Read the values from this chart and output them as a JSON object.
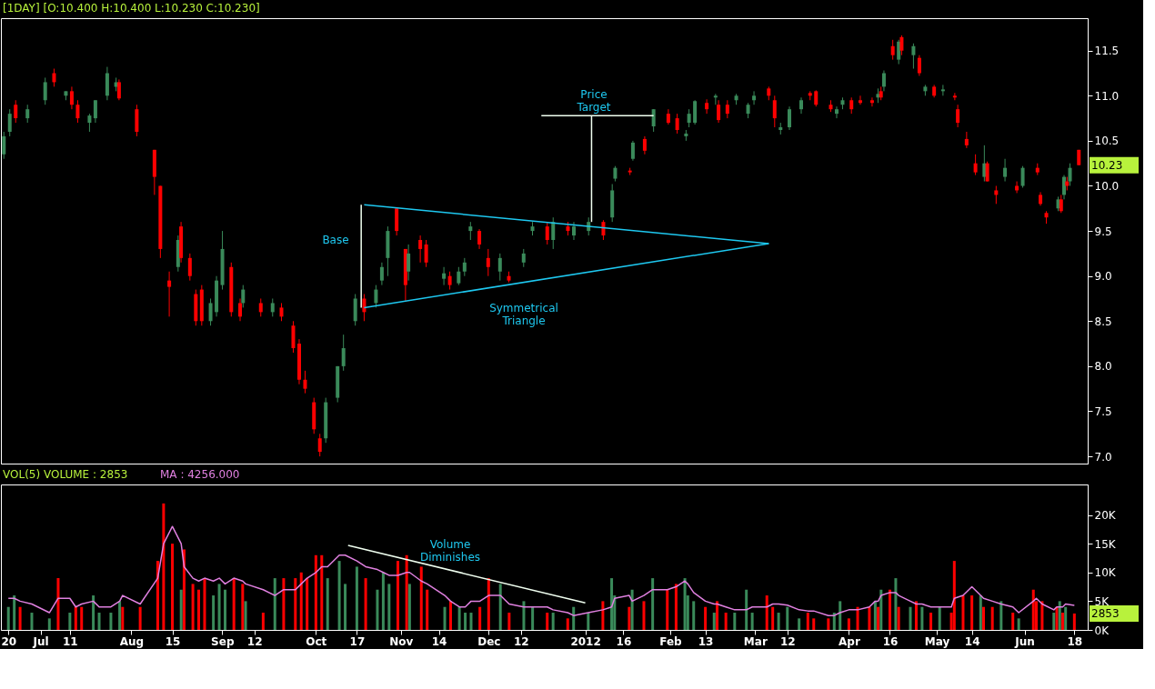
{
  "chart_data": [
    {
      "type": "candlestick",
      "title": "[1DAY] [O:10.400 H:10.400 L:10.230 C:10.230]",
      "x": [
        "2011-06-20",
        "2011-06-22",
        "2011-06-24",
        "2011-06-28",
        "2011-07-04",
        "2011-07-07",
        "2011-07-11",
        "2011-07-13",
        "2011-07-15",
        "2011-07-19",
        "2011-07-21",
        "2011-07-25",
        "2011-07-28",
        "2011-07-29",
        "2011-08-04",
        "2011-08-10",
        "2011-08-12",
        "2011-08-15",
        "2011-08-18",
        "2011-08-19",
        "2011-08-22",
        "2011-08-24",
        "2011-08-26",
        "2011-08-29",
        "2011-08-31",
        "2011-09-02",
        "2011-09-05",
        "2011-09-08",
        "2011-09-09",
        "2011-09-15",
        "2011-09-19",
        "2011-09-22",
        "2011-09-26",
        "2011-09-28",
        "2011-09-30",
        "2011-10-03",
        "2011-10-05",
        "2011-10-07",
        "2011-10-11",
        "2011-10-13",
        "2011-10-17",
        "2011-10-20",
        "2011-10-24",
        "2011-10-26",
        "2011-10-28",
        "2011-10-31",
        "2011-11-03",
        "2011-11-04",
        "2011-11-08",
        "2011-11-10",
        "2011-11-16",
        "2011-11-18",
        "2011-11-21",
        "2011-11-23",
        "2011-11-25",
        "2011-11-28",
        "2011-12-01",
        "2011-12-05",
        "2011-12-08",
        "2011-12-13",
        "2011-12-16",
        "2011-12-21",
        "2011-12-23",
        "2011-12-28",
        "2011-12-30",
        "2012-01-04",
        "2012-01-09",
        "2012-01-12",
        "2012-01-13",
        "2012-01-18",
        "2012-01-19",
        "2012-01-23",
        "2012-01-26",
        "2012-01-31",
        "2012-02-03",
        "2012-02-06",
        "2012-02-07",
        "2012-02-09",
        "2012-02-13",
        "2012-02-16",
        "2012-02-17",
        "2012-02-20",
        "2012-02-23",
        "2012-02-27",
        "2012-02-29",
        "2012-03-05",
        "2012-03-07",
        "2012-03-09",
        "2012-03-12",
        "2012-03-16",
        "2012-03-19",
        "2012-03-21",
        "2012-03-26",
        "2012-03-28",
        "2012-03-30",
        "2012-04-02",
        "2012-04-05",
        "2012-04-09",
        "2012-04-11",
        "2012-04-12",
        "2012-04-13",
        "2012-04-16",
        "2012-04-18",
        "2012-04-19",
        "2012-04-23",
        "2012-04-25",
        "2012-04-27",
        "2012-04-30",
        "2012-05-03",
        "2012-05-07",
        "2012-05-08",
        "2012-05-11",
        "2012-05-14",
        "2012-05-17",
        "2012-05-18",
        "2012-05-21",
        "2012-05-24",
        "2012-05-28",
        "2012-05-30",
        "2012-06-04",
        "2012-06-05",
        "2012-06-07",
        "2012-06-11",
        "2012-06-12",
        "2012-06-13",
        "2012-06-14",
        "2012-06-15",
        "2012-06-18"
      ],
      "ohlc": [
        [
          10.35,
          10.6,
          10.3,
          10.55
        ],
        [
          10.6,
          10.85,
          10.55,
          10.8
        ],
        [
          10.9,
          10.95,
          10.7,
          10.75
        ],
        [
          10.75,
          10.9,
          10.7,
          10.85
        ],
        [
          10.95,
          11.2,
          10.9,
          11.15
        ],
        [
          11.25,
          11.3,
          11.1,
          11.15
        ],
        [
          11.0,
          11.05,
          10.95,
          11.05
        ],
        [
          11.05,
          11.1,
          10.85,
          10.9
        ],
        [
          10.9,
          10.95,
          10.7,
          10.75
        ],
        [
          10.7,
          10.8,
          10.6,
          10.78
        ],
        [
          10.75,
          10.95,
          10.7,
          10.95
        ],
        [
          11.0,
          11.32,
          10.95,
          11.25
        ],
        [
          11.1,
          11.2,
          11.05,
          11.15
        ],
        [
          11.15,
          11.18,
          10.95,
          10.97
        ],
        [
          10.85,
          10.9,
          10.55,
          10.6
        ],
        [
          10.4,
          10.4,
          9.9,
          10.1
        ],
        [
          10.0,
          10.0,
          9.2,
          9.3
        ],
        [
          8.95,
          9.05,
          8.55,
          8.88
        ],
        [
          9.1,
          9.45,
          9.05,
          9.4
        ],
        [
          9.55,
          9.6,
          9.15,
          9.2
        ],
        [
          9.2,
          9.25,
          8.95,
          9.0
        ],
        [
          8.8,
          8.85,
          8.45,
          8.5
        ],
        [
          8.85,
          8.9,
          8.45,
          8.5
        ],
        [
          8.5,
          8.75,
          8.45,
          8.7
        ],
        [
          8.6,
          9.0,
          8.55,
          8.95
        ],
        [
          8.9,
          9.5,
          8.85,
          9.3
        ],
        [
          9.1,
          9.15,
          8.55,
          8.6
        ],
        [
          8.7,
          8.75,
          8.5,
          8.55
        ],
        [
          8.7,
          8.9,
          8.65,
          8.85
        ],
        [
          8.7,
          8.75,
          8.55,
          8.6
        ],
        [
          8.6,
          8.75,
          8.55,
          8.7
        ],
        [
          8.65,
          8.7,
          8.5,
          8.55
        ],
        [
          8.45,
          8.5,
          8.15,
          8.2
        ],
        [
          8.25,
          8.3,
          7.8,
          7.85
        ],
        [
          7.85,
          7.95,
          7.7,
          7.75
        ],
        [
          7.6,
          7.65,
          7.25,
          7.3
        ],
        [
          7.2,
          7.25,
          7.0,
          7.05
        ],
        [
          7.2,
          7.65,
          7.15,
          7.6
        ],
        [
          7.65,
          8.0,
          7.6,
          8.0
        ],
        [
          8.0,
          8.35,
          7.95,
          8.2
        ],
        [
          8.5,
          8.8,
          8.45,
          8.75
        ],
        [
          8.75,
          8.8,
          8.5,
          8.6
        ],
        [
          8.7,
          8.9,
          8.65,
          8.85
        ],
        [
          8.95,
          9.15,
          8.9,
          9.1
        ],
        [
          9.2,
          9.55,
          9.0,
          9.5
        ],
        [
          9.75,
          9.75,
          9.45,
          9.5
        ],
        [
          9.3,
          9.3,
          8.72,
          8.9
        ],
        [
          9.05,
          9.35,
          8.95,
          9.25
        ],
        [
          9.4,
          9.45,
          9.15,
          9.3
        ],
        [
          9.35,
          9.4,
          9.1,
          9.15
        ],
        [
          8.97,
          9.1,
          8.9,
          9.03
        ],
        [
          9.0,
          9.05,
          8.85,
          8.9
        ],
        [
          8.92,
          9.1,
          8.9,
          9.05
        ],
        [
          9.05,
          9.2,
          9.0,
          9.15
        ],
        [
          9.5,
          9.6,
          9.4,
          9.55
        ],
        [
          9.5,
          9.52,
          9.3,
          9.35
        ],
        [
          9.2,
          9.3,
          9.0,
          9.1
        ],
        [
          9.05,
          9.25,
          8.95,
          9.2
        ],
        [
          9.0,
          9.05,
          8.93,
          8.95
        ],
        [
          9.15,
          9.3,
          9.1,
          9.25
        ],
        [
          9.5,
          9.6,
          9.45,
          9.55
        ],
        [
          9.55,
          9.6,
          9.35,
          9.4
        ],
        [
          9.4,
          9.65,
          9.3,
          9.6
        ],
        [
          9.55,
          9.6,
          9.45,
          9.5
        ],
        [
          9.45,
          9.6,
          9.4,
          9.55
        ],
        [
          9.5,
          9.65,
          9.45,
          9.6
        ],
        [
          9.6,
          9.62,
          9.4,
          9.45
        ],
        [
          9.65,
          10.02,
          9.6,
          9.95
        ],
        [
          10.08,
          10.22,
          10.05,
          10.2
        ],
        [
          10.17,
          10.2,
          10.12,
          10.15
        ],
        [
          10.3,
          10.5,
          10.28,
          10.48
        ],
        [
          10.52,
          10.55,
          10.35,
          10.39
        ],
        [
          10.66,
          10.85,
          10.6,
          10.85
        ],
        [
          10.8,
          10.85,
          10.68,
          10.7
        ],
        [
          10.75,
          10.8,
          10.58,
          10.62
        ],
        [
          10.55,
          10.62,
          10.5,
          10.58
        ],
        [
          10.7,
          10.85,
          10.65,
          10.8
        ],
        [
          10.7,
          10.95,
          10.68,
          10.94
        ],
        [
          10.92,
          10.96,
          10.8,
          10.85
        ],
        [
          10.98,
          11.02,
          10.9,
          11.0
        ],
        [
          10.9,
          10.95,
          10.7,
          10.73
        ],
        [
          10.9,
          10.95,
          10.75,
          10.8
        ],
        [
          10.95,
          11.02,
          10.9,
          11.0
        ],
        [
          10.8,
          10.92,
          10.75,
          10.9
        ],
        [
          10.95,
          11.05,
          10.9,
          11.0
        ],
        [
          11.08,
          11.1,
          10.95,
          11.0
        ],
        [
          10.95,
          11.0,
          10.65,
          10.75
        ],
        [
          10.62,
          10.7,
          10.57,
          10.65
        ],
        [
          10.65,
          10.88,
          10.62,
          10.85
        ],
        [
          10.85,
          10.98,
          10.8,
          10.95
        ],
        [
          11.03,
          11.05,
          10.95,
          11.0
        ],
        [
          11.05,
          11.06,
          10.88,
          10.9
        ],
        [
          10.9,
          10.95,
          10.82,
          10.85
        ],
        [
          10.8,
          10.88,
          10.75,
          10.85
        ],
        [
          10.9,
          10.98,
          10.85,
          10.95
        ],
        [
          10.95,
          10.98,
          10.8,
          10.85
        ],
        [
          10.95,
          11.0,
          10.9,
          10.92
        ],
        [
          10.95,
          10.98,
          10.88,
          10.92
        ],
        [
          10.98,
          11.08,
          10.92,
          11.02
        ],
        [
          11.05,
          11.1,
          10.95,
          10.98
        ],
        [
          11.1,
          11.28,
          11.05,
          11.25
        ],
        [
          11.55,
          11.62,
          11.4,
          11.45
        ],
        [
          11.4,
          11.62,
          11.35,
          11.6
        ],
        [
          11.65,
          11.67,
          11.45,
          11.5
        ],
        [
          11.45,
          11.58,
          11.3,
          11.55
        ],
        [
          11.42,
          11.45,
          11.22,
          11.25
        ],
        [
          11.05,
          11.12,
          11.0,
          11.1
        ],
        [
          11.1,
          11.12,
          10.98,
          11.0
        ],
        [
          11.05,
          11.12,
          11.0,
          11.07
        ],
        [
          11.0,
          11.03,
          10.95,
          10.98
        ],
        [
          10.85,
          10.9,
          10.65,
          10.7
        ],
        [
          10.52,
          10.6,
          10.42,
          10.45
        ],
        [
          10.25,
          10.35,
          10.12,
          10.15
        ],
        [
          10.1,
          10.45,
          10.05,
          10.25
        ],
        [
          10.25,
          10.27,
          10.05,
          10.05
        ],
        [
          9.95,
          10.0,
          9.8,
          9.9
        ],
        [
          10.1,
          10.3,
          10.05,
          10.2
        ],
        [
          10.0,
          10.05,
          9.92,
          9.95
        ],
        [
          10.0,
          10.22,
          9.98,
          10.2
        ],
        [
          10.2,
          10.25,
          10.12,
          10.15
        ],
        [
          9.9,
          9.93,
          9.78,
          9.8
        ],
        [
          9.7,
          9.72,
          9.58,
          9.65
        ],
        [
          9.75,
          9.88,
          9.72,
          9.85
        ],
        [
          9.85,
          9.9,
          9.7,
          9.72
        ],
        [
          9.9,
          10.12,
          9.85,
          10.1
        ],
        [
          10.05,
          10.1,
          9.95,
          10.0
        ],
        [
          10.05,
          10.25,
          10.0,
          10.2
        ],
        [
          10.4,
          10.4,
          10.23,
          10.23
        ]
      ],
      "colors": [
        "#3a8a5a",
        "#3a8a5a",
        "#ff0000",
        "#3a8a5a",
        "#3a8a5a",
        "#ff0000",
        "#3a8a5a",
        "#ff0000",
        "#ff0000",
        "#3a8a5a",
        "#3a8a5a",
        "#3a8a5a",
        "#3a8a5a",
        "#ff0000",
        "#ff0000",
        "#ff0000",
        "#ff0000",
        "#ff0000",
        "#3a8a5a",
        "#ff0000",
        "#ff0000",
        "#ff0000",
        "#ff0000",
        "#3a8a5a",
        "#3a8a5a",
        "#3a8a5a",
        "#ff0000",
        "#ff0000",
        "#3a8a5a",
        "#ff0000",
        "#3a8a5a",
        "#ff0000",
        "#ff0000",
        "#ff0000",
        "#ff0000",
        "#ff0000",
        "#ff0000",
        "#3a8a5a",
        "#3a8a5a",
        "#3a8a5a",
        "#3a8a5a",
        "#ff0000",
        "#3a8a5a",
        "#3a8a5a",
        "#3a8a5a",
        "#ff0000",
        "#ff0000",
        "#3a8a5a",
        "#ff0000",
        "#ff0000",
        "#3a8a5a",
        "#ff0000",
        "#3a8a5a",
        "#3a8a5a",
        "#3a8a5a",
        "#ff0000",
        "#ff0000",
        "#3a8a5a",
        "#ff0000",
        "#3a8a5a",
        "#3a8a5a",
        "#ff0000",
        "#3a8a5a",
        "#ff0000",
        "#3a8a5a",
        "#3a8a5a",
        "#ff0000",
        "#3a8a5a",
        "#3a8a5a",
        "#ff0000",
        "#3a8a5a",
        "#ff0000",
        "#3a8a5a",
        "#ff0000",
        "#ff0000",
        "#3a8a5a",
        "#3a8a5a",
        "#3a8a5a",
        "#ff0000",
        "#3a8a5a",
        "#ff0000",
        "#ff0000",
        "#3a8a5a",
        "#3a8a5a",
        "#3a8a5a",
        "#ff0000",
        "#ff0000",
        "#3a8a5a",
        "#3a8a5a",
        "#3a8a5a",
        "#ff0000",
        "#ff0000",
        "#ff0000",
        "#3a8a5a",
        "#3a8a5a",
        "#ff0000",
        "#ff0000",
        "#ff0000",
        "#3a8a5a",
        "#ff0000",
        "#3a8a5a",
        "#ff0000",
        "#3a8a5a",
        "#ff0000",
        "#3a8a5a",
        "#ff0000",
        "#3a8a5a",
        "#ff0000",
        "#3a8a5a",
        "#ff0000",
        "#ff0000",
        "#ff0000",
        "#ff0000",
        "#3a8a5a",
        "#ff0000",
        "#ff0000",
        "#3a8a5a",
        "#ff0000",
        "#3a8a5a",
        "#ff0000",
        "#ff0000",
        "#ff0000",
        "#3a8a5a",
        "#ff0000",
        "#3a8a5a",
        "#ff0000",
        "#3a8a5a",
        "#ff0000"
      ],
      "series": [
        {
          "type": "line",
          "color": "#1ec8f0",
          "x": [
            "2011-10-20",
            "2012-03-05"
          ],
          "values": [
            9.79,
            9.36
          ]
        },
        {
          "type": "line",
          "color": "#1ec8f0",
          "x": [
            "2011-10-20",
            "2012-03-05"
          ],
          "values": [
            8.65,
            9.36
          ]
        },
        {
          "type": "line",
          "color": "#f0fff0",
          "x": [
            "2011-10-19",
            "2011-10-19"
          ],
          "values": [
            8.65,
            9.79
          ]
        },
        {
          "type": "line",
          "color": "#f0fff0",
          "x": [
            "2012-01-05",
            "2012-01-05"
          ],
          "values": [
            9.6,
            10.78
          ]
        },
        {
          "type": "line",
          "color": "#f0fff0",
          "x": [
            "2011-12-19",
            "2012-01-26"
          ],
          "values": [
            10.78,
            10.78
          ]
        }
      ],
      "annotations": [
        "Base",
        "Price\nTarget",
        "Symmetrical\nTriangle",
        "10.23"
      ],
      "xlim": [
        "2011-06-19",
        "2012-06-21"
      ],
      "ylim": [
        6.92,
        11.86
      ],
      "yticks": [
        {
          "value": 7,
          "label": "7.0"
        },
        7.5,
        {
          "value": 8,
          "label": "8.0"
        },
        8.5,
        {
          "value": 9,
          "label": "9.0"
        },
        9.5,
        {
          "value": 10,
          "label": "10.0"
        },
        10.5,
        {
          "value": 11,
          "label": "11.0"
        },
        11.5
      ],
      "tick_labels": "y",
      "grid": false
    },
    {
      "type": "bar",
      "title": "VOL(5)  VOLUME : 2853",
      "x": [
        "2011-06-20",
        "2011-06-22",
        "2011-06-24",
        "2011-06-28",
        "2011-07-04",
        "2011-07-07",
        "2011-07-11",
        "2011-07-13",
        "2011-07-15",
        "2011-07-19",
        "2011-07-21",
        "2011-07-25",
        "2011-07-28",
        "2011-07-29",
        "2011-08-04",
        "2011-08-10",
        "2011-08-12",
        "2011-08-15",
        "2011-08-18",
        "2011-08-19",
        "2011-08-22",
        "2011-08-24",
        "2011-08-26",
        "2011-08-29",
        "2011-08-31",
        "2011-09-02",
        "2011-09-05",
        "2011-09-08",
        "2011-09-09",
        "2011-09-15",
        "2011-09-19",
        "2011-09-22",
        "2011-09-26",
        "2011-09-28",
        "2011-09-30",
        "2011-10-03",
        "2011-10-05",
        "2011-10-07",
        "2011-10-11",
        "2011-10-13",
        "2011-10-17",
        "2011-10-20",
        "2011-10-24",
        "2011-10-26",
        "2011-10-28",
        "2011-10-31",
        "2011-11-03",
        "2011-11-04",
        "2011-11-08",
        "2011-11-10",
        "2011-11-16",
        "2011-11-18",
        "2011-11-21",
        "2011-11-23",
        "2011-11-25",
        "2011-11-28",
        "2011-12-01",
        "2011-12-05",
        "2011-12-08",
        "2011-12-13",
        "2011-12-16",
        "2011-12-21",
        "2011-12-23",
        "2011-12-28",
        "2011-12-30",
        "2012-01-04",
        "2012-01-09",
        "2012-01-12",
        "2012-01-13",
        "2012-01-18",
        "2012-01-19",
        "2012-01-23",
        "2012-01-26",
        "2012-01-31",
        "2012-02-03",
        "2012-02-06",
        "2012-02-07",
        "2012-02-09",
        "2012-02-13",
        "2012-02-16",
        "2012-02-17",
        "2012-02-20",
        "2012-02-23",
        "2012-02-27",
        "2012-02-29",
        "2012-03-05",
        "2012-03-07",
        "2012-03-09",
        "2012-03-12",
        "2012-03-16",
        "2012-03-19",
        "2012-03-21",
        "2012-03-26",
        "2012-03-28",
        "2012-03-30",
        "2012-04-02",
        "2012-04-05",
        "2012-04-09",
        "2012-04-11",
        "2012-04-12",
        "2012-04-13",
        "2012-04-16",
        "2012-04-18",
        "2012-04-19",
        "2012-04-23",
        "2012-04-25",
        "2012-04-27",
        "2012-04-30",
        "2012-05-03",
        "2012-05-07",
        "2012-05-08",
        "2012-05-11",
        "2012-05-14",
        "2012-05-17",
        "2012-05-18",
        "2012-05-21",
        "2012-05-24",
        "2012-05-28",
        "2012-05-30",
        "2012-06-04",
        "2012-06-05",
        "2012-06-07",
        "2012-06-11",
        "2012-06-12",
        "2012-06-13",
        "2012-06-14",
        "2012-06-15",
        "2012-06-18"
      ],
      "values": [
        4,
        6,
        4,
        3,
        2,
        9,
        3,
        4,
        4,
        6,
        3,
        3,
        5,
        4,
        4,
        12,
        22,
        15,
        7,
        14,
        8,
        7,
        9,
        6,
        8,
        7,
        9,
        8,
        5,
        3,
        9,
        9,
        9,
        10,
        9,
        13,
        13,
        9,
        12,
        8,
        11,
        9,
        7,
        10,
        8,
        12,
        13,
        8,
        11,
        7,
        4,
        5,
        4,
        3,
        3,
        4,
        9,
        8,
        3,
        5,
        4,
        3,
        3,
        2,
        4,
        3,
        5,
        9,
        6,
        4,
        7,
        5,
        9,
        7,
        8,
        9,
        6,
        5,
        4,
        3,
        5,
        3,
        3,
        7,
        3,
        6,
        4,
        3,
        4,
        2,
        3,
        2,
        2,
        3,
        5,
        2,
        4,
        4,
        5,
        4,
        7,
        7,
        9,
        4,
        4,
        5,
        4,
        3,
        4,
        3,
        12,
        6,
        6,
        6,
        4,
        4,
        5,
        3,
        2,
        7,
        5,
        5,
        3,
        4,
        5,
        3,
        4,
        2.853
      ],
      "colors": [
        "#3a8a5a",
        "#3a8a5a",
        "#ff0000",
        "#3a8a5a",
        "#3a8a5a",
        "#ff0000",
        "#3a8a5a",
        "#ff0000",
        "#ff0000",
        "#3a8a5a",
        "#3a8a5a",
        "#3a8a5a",
        "#3a8a5a",
        "#ff0000",
        "#ff0000",
        "#ff0000",
        "#ff0000",
        "#ff0000",
        "#3a8a5a",
        "#ff0000",
        "#ff0000",
        "#ff0000",
        "#ff0000",
        "#3a8a5a",
        "#3a8a5a",
        "#3a8a5a",
        "#ff0000",
        "#ff0000",
        "#3a8a5a",
        "#ff0000",
        "#3a8a5a",
        "#ff0000",
        "#ff0000",
        "#ff0000",
        "#ff0000",
        "#ff0000",
        "#ff0000",
        "#3a8a5a",
        "#3a8a5a",
        "#3a8a5a",
        "#3a8a5a",
        "#ff0000",
        "#3a8a5a",
        "#3a8a5a",
        "#3a8a5a",
        "#ff0000",
        "#ff0000",
        "#3a8a5a",
        "#ff0000",
        "#ff0000",
        "#3a8a5a",
        "#ff0000",
        "#3a8a5a",
        "#3a8a5a",
        "#3a8a5a",
        "#ff0000",
        "#ff0000",
        "#3a8a5a",
        "#ff0000",
        "#3a8a5a",
        "#3a8a5a",
        "#ff0000",
        "#3a8a5a",
        "#ff0000",
        "#3a8a5a",
        "#3a8a5a",
        "#ff0000",
        "#3a8a5a",
        "#3a8a5a",
        "#ff0000",
        "#3a8a5a",
        "#ff0000",
        "#3a8a5a",
        "#ff0000",
        "#ff0000",
        "#3a8a5a",
        "#3a8a5a",
        "#3a8a5a",
        "#ff0000",
        "#3a8a5a",
        "#ff0000",
        "#ff0000",
        "#3a8a5a",
        "#3a8a5a",
        "#3a8a5a",
        "#ff0000",
        "#ff0000",
        "#3a8a5a",
        "#3a8a5a",
        "#3a8a5a",
        "#ff0000",
        "#ff0000",
        "#ff0000",
        "#3a8a5a",
        "#3a8a5a",
        "#ff0000",
        "#ff0000",
        "#ff0000",
        "#3a8a5a",
        "#ff0000",
        "#3a8a5a",
        "#ff0000",
        "#3a8a5a",
        "#ff0000",
        "#3a8a5a",
        "#ff0000",
        "#3a8a5a",
        "#ff0000",
        "#3a8a5a",
        "#ff0000",
        "#ff0000",
        "#ff0000",
        "#ff0000",
        "#3a8a5a",
        "#ff0000",
        "#ff0000",
        "#3a8a5a",
        "#ff0000",
        "#3a8a5a",
        "#ff0000",
        "#ff0000",
        "#ff0000",
        "#3a8a5a",
        "#ff0000",
        "#3a8a5a",
        "#ff0000",
        "#3a8a5a",
        "#ff0000"
      ],
      "series": [
        {
          "type": "line",
          "name": "MA : 4256.000",
          "color": "#e080e0",
          "values": [
            5.5,
            5.5,
            5,
            4.5,
            3,
            5.5,
            5.5,
            4,
            4.5,
            5,
            4,
            4,
            5,
            6,
            4.5,
            9,
            15,
            18,
            15,
            11,
            9,
            8.5,
            9,
            8.5,
            9,
            8,
            9,
            8.5,
            8,
            7,
            6,
            7,
            7,
            8,
            9,
            10,
            11,
            11,
            13,
            13,
            12,
            11,
            10.5,
            10,
            9.5,
            9.5,
            10,
            10,
            8.5,
            8,
            6,
            5,
            4,
            4,
            5,
            5,
            6,
            6,
            4.5,
            4,
            4,
            4,
            3.5,
            3,
            2.5,
            3,
            3.5,
            4,
            5.5,
            6,
            5,
            6,
            7,
            7,
            7.5,
            8.5,
            8,
            6.5,
            5,
            4.5,
            4.5,
            4,
            3.5,
            3.5,
            4,
            4,
            4.5,
            4.5,
            4.3,
            3.5,
            3.3,
            3.3,
            2.5,
            2.5,
            3,
            3.5,
            3.5,
            4,
            5,
            5,
            6,
            6.5,
            6.5,
            6,
            5,
            4.5,
            4.5,
            4,
            4,
            4,
            5.5,
            6,
            7.5,
            6,
            5.5,
            5,
            4.5,
            4,
            3,
            5,
            5.5,
            4.5,
            3.5,
            4,
            4,
            4,
            4.5,
            4.256
          ]
        },
        {
          "type": "line",
          "color": "#f0fff0",
          "x": [
            "2011-10-14",
            "2012-01-03"
          ],
          "values": [
            14.7,
            4.7
          ]
        }
      ],
      "annotations": [
        "Volume\nDiminishes",
        "2853"
      ],
      "xlim": [
        "2011-06-19",
        "2012-06-21"
      ],
      "ylim": [
        0,
        25.3
      ],
      "yticks": [
        {
          "value": 0,
          "label": "0K"
        },
        {
          "value": 5,
          "label": "5K"
        },
        {
          "value": 10,
          "label": "10K"
        },
        {
          "value": 15,
          "label": "15K"
        },
        {
          "value": 20,
          "label": "20K"
        }
      ],
      "xticks": [
        {
          "value": "2011-06-20",
          "label": "20"
        },
        {
          "value": "2011-07-01",
          "label": "Jul"
        },
        {
          "value": "2011-07-11",
          "label": "11"
        },
        {
          "value": "2011-08-01",
          "label": "Aug"
        },
        {
          "value": "2011-08-15",
          "label": "15"
        },
        {
          "value": "2011-09-01",
          "label": "Sep"
        },
        {
          "value": "2011-09-12",
          "label": "12"
        },
        {
          "value": "2011-10-03",
          "label": "Oct"
        },
        {
          "value": "2011-10-17",
          "label": "17"
        },
        {
          "value": "2011-11-01",
          "label": "Nov"
        },
        {
          "value": "2011-11-14",
          "label": "14"
        },
        {
          "value": "2011-12-01",
          "label": "Dec"
        },
        {
          "value": "2011-12-12",
          "label": "12"
        },
        {
          "value": "2012-01-03",
          "label": "2012"
        },
        {
          "value": "2012-01-16",
          "label": "16"
        },
        {
          "value": "2012-02-01",
          "label": "Feb"
        },
        {
          "value": "2012-02-13",
          "label": "13"
        },
        {
          "value": "2012-03-01",
          "label": "Mar"
        },
        {
          "value": "2012-03-12",
          "label": "12"
        },
        {
          "value": "2012-04-02",
          "label": "Apr"
        },
        {
          "value": "2012-04-16",
          "label": "16"
        },
        {
          "value": "2012-05-02",
          "label": "May"
        },
        {
          "value": "2012-05-14",
          "label": "14"
        },
        {
          "value": "2012-06-01",
          "label": "Jun"
        },
        {
          "value": "2012-06-18",
          "label": "18"
        }
      ],
      "grid": false
    }
  ]
}
